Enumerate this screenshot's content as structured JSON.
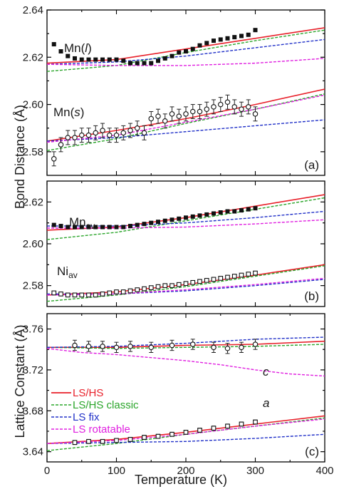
{
  "chart_data": [
    {
      "type": "line",
      "panel_label": "(a)",
      "xlim": [
        0,
        400
      ],
      "ylim": [
        2.57,
        2.64
      ],
      "yticks": [
        "2.58",
        "2.60",
        "2.62",
        "2.64"
      ],
      "annotations": [
        {
          "id": "mn-l",
          "main": "Mn(",
          "italic": "l",
          "tail": ")"
        },
        {
          "id": "mn-s",
          "main": "Mn(",
          "italic": "s",
          "tail": ")"
        }
      ],
      "series": [
        {
          "name": "LS/HS",
          "color": "#e8202a",
          "style": "solid",
          "x": [
            0,
            100,
            200,
            300,
            400
          ],
          "y": [
            2.6175,
            2.619,
            2.6235,
            2.628,
            2.6325
          ]
        },
        {
          "name": "LS/HS classic",
          "color": "#2aa52a",
          "style": "dashed",
          "x": [
            0,
            100,
            200,
            300,
            400
          ],
          "y": [
            2.614,
            2.6165,
            2.622,
            2.627,
            2.6315
          ]
        },
        {
          "name": "LS fix",
          "color": "#2030c8",
          "style": "dashed",
          "x": [
            0,
            100,
            200,
            300,
            400
          ],
          "y": [
            2.617,
            2.618,
            2.6205,
            2.624,
            2.6275
          ]
        },
        {
          "name": "LS rotatable",
          "color": "#e020e0",
          "style": "dashed",
          "x": [
            0,
            100,
            200,
            300,
            400
          ],
          "y": [
            2.617,
            2.6165,
            2.6165,
            2.6175,
            2.6195
          ]
        },
        {
          "name": "LS/HS",
          "color": "#e8202a",
          "style": "solid",
          "x": [
            0,
            100,
            200,
            300,
            400
          ],
          "y": [
            2.5845,
            2.589,
            2.594,
            2.6,
            2.6065
          ]
        },
        {
          "name": "LS/HS classic",
          "color": "#2aa52a",
          "style": "dashed",
          "x": [
            0,
            100,
            200,
            300,
            400
          ],
          "y": [
            2.5805,
            2.5855,
            2.592,
            2.598,
            2.6045
          ]
        },
        {
          "name": "LS fix",
          "color": "#2030c8",
          "style": "dashed",
          "x": [
            0,
            100,
            200,
            300,
            400
          ],
          "y": [
            2.5845,
            2.586,
            2.5885,
            2.591,
            2.5935
          ]
        },
        {
          "name": "LS rotatable",
          "color": "#e020e0",
          "style": "dashed",
          "x": [
            0,
            100,
            200,
            300,
            400
          ],
          "y": [
            2.584,
            2.587,
            2.5925,
            2.598,
            2.604
          ]
        }
      ],
      "points": [
        {
          "marker": "square-filled",
          "errorbars": false,
          "x": [
            10,
            20,
            30,
            40,
            50,
            60,
            70,
            80,
            90,
            100,
            110,
            120,
            130,
            140,
            150,
            160,
            170,
            180,
            190,
            200,
            210,
            220,
            230,
            240,
            250,
            260,
            270,
            280,
            290,
            300
          ],
          "y": [
            2.6255,
            2.6225,
            2.6205,
            2.6195,
            2.619,
            2.619,
            2.619,
            2.619,
            2.619,
            2.619,
            2.6185,
            2.6175,
            2.6175,
            2.6175,
            2.6175,
            2.6185,
            2.6195,
            2.6205,
            2.622,
            2.6225,
            2.6235,
            2.625,
            2.626,
            2.627,
            2.6275,
            2.628,
            2.6285,
            2.629,
            2.6295,
            2.6315
          ]
        },
        {
          "marker": "circle-open",
          "errorbars": true,
          "err": 0.003,
          "x": [
            10,
            20,
            30,
            40,
            50,
            60,
            70,
            80,
            90,
            100,
            110,
            120,
            130,
            140,
            150,
            160,
            170,
            180,
            190,
            200,
            210,
            220,
            230,
            240,
            250,
            260,
            270,
            280,
            290,
            300
          ],
          "y": [
            2.577,
            2.583,
            2.586,
            2.586,
            2.587,
            2.587,
            2.588,
            2.589,
            2.587,
            2.587,
            2.588,
            2.589,
            2.59,
            2.588,
            2.594,
            2.595,
            2.593,
            2.596,
            2.595,
            2.596,
            2.597,
            2.597,
            2.598,
            2.599,
            2.6,
            2.601,
            2.599,
            2.598,
            2.599,
            2.596
          ]
        }
      ]
    },
    {
      "type": "line",
      "panel_label": "(b)",
      "xlim": [
        0,
        400
      ],
      "ylim": [
        2.57,
        2.63
      ],
      "yticks": [
        "2.58",
        "2.60",
        "2.62"
      ],
      "annotations": [
        {
          "id": "mn-av",
          "main": "Mn",
          "sub": "av"
        },
        {
          "id": "ni-av",
          "main": "Ni",
          "sub": "av"
        }
      ],
      "series": [
        {
          "name": "LS/HS",
          "color": "#e8202a",
          "style": "solid",
          "x": [
            0,
            100,
            200,
            300,
            400
          ],
          "y": [
            2.6065,
            2.608,
            2.6125,
            2.618,
            2.6235
          ]
        },
        {
          "name": "LS/HS classic",
          "color": "#2aa52a",
          "style": "dashed",
          "x": [
            0,
            100,
            200,
            300,
            400
          ],
          "y": [
            2.602,
            2.6055,
            2.611,
            2.6165,
            2.622
          ]
        },
        {
          "name": "LS fix",
          "color": "#2030c8",
          "style": "dashed",
          "x": [
            0,
            100,
            200,
            300,
            400
          ],
          "y": [
            2.6085,
            2.6085,
            2.61,
            2.6125,
            2.6155
          ]
        },
        {
          "name": "LS rotatable",
          "color": "#e020e0",
          "style": "dashed",
          "x": [
            0,
            100,
            200,
            300,
            400
          ],
          "y": [
            2.6075,
            2.6075,
            2.608,
            2.6095,
            2.6115
          ]
        },
        {
          "name": "LS/HS",
          "color": "#e8202a",
          "style": "solid",
          "x": [
            0,
            100,
            200,
            300,
            400
          ],
          "y": [
            2.5755,
            2.577,
            2.5805,
            2.585,
            2.59
          ]
        },
        {
          "name": "LS/HS classic",
          "color": "#2aa52a",
          "style": "dashed",
          "x": [
            0,
            100,
            200,
            300,
            400
          ],
          "y": [
            2.5725,
            2.5755,
            2.5795,
            2.5845,
            2.5895
          ]
        },
        {
          "name": "LS fix",
          "color": "#2030c8",
          "style": "dashed",
          "x": [
            0,
            100,
            200,
            300,
            400
          ],
          "y": [
            2.576,
            2.576,
            2.5775,
            2.58,
            2.583
          ]
        },
        {
          "name": "LS rotatable",
          "color": "#e020e0",
          "style": "dashed",
          "x": [
            0,
            100,
            200,
            300,
            400
          ],
          "y": [
            2.5755,
            2.576,
            2.578,
            2.5805,
            2.5835
          ]
        }
      ],
      "points": [
        {
          "marker": "square-filled",
          "errorbars": false,
          "x": [
            10,
            20,
            30,
            40,
            50,
            60,
            70,
            80,
            90,
            100,
            110,
            120,
            130,
            140,
            150,
            160,
            170,
            180,
            190,
            200,
            210,
            220,
            230,
            240,
            250,
            260,
            270,
            280,
            290,
            300
          ],
          "y": [
            2.609,
            2.6085,
            2.608,
            2.608,
            2.608,
            2.608,
            2.608,
            2.608,
            2.608,
            2.608,
            2.608,
            2.6085,
            2.609,
            2.6095,
            2.61,
            2.6105,
            2.611,
            2.6115,
            2.612,
            2.6125,
            2.613,
            2.6135,
            2.614,
            2.6145,
            2.615,
            2.6155,
            2.6155,
            2.616,
            2.6165,
            2.617
          ]
        },
        {
          "marker": "square-open",
          "errorbars": false,
          "x": [
            10,
            20,
            30,
            40,
            50,
            60,
            70,
            80,
            90,
            100,
            110,
            120,
            130,
            140,
            150,
            160,
            170,
            180,
            190,
            200,
            210,
            220,
            230,
            240,
            250,
            260,
            270,
            280,
            290,
            300
          ],
          "y": [
            2.5765,
            2.576,
            2.5755,
            2.5755,
            2.5755,
            2.5755,
            2.5755,
            2.576,
            2.5765,
            2.577,
            2.577,
            2.5775,
            2.578,
            2.5785,
            2.579,
            2.5795,
            2.58,
            2.58,
            2.5805,
            2.581,
            2.5815,
            2.582,
            2.5825,
            2.583,
            2.5835,
            2.584,
            2.5845,
            2.585,
            2.5855,
            2.586
          ]
        }
      ]
    },
    {
      "type": "line",
      "panel_label": "(c)",
      "xlim": [
        0,
        400
      ],
      "ylim": [
        3.63,
        3.775
      ],
      "yticks": [
        "3.64",
        "3.68",
        "3.72",
        "3.76"
      ],
      "xticks": [
        "0",
        "100",
        "200",
        "300",
        "400"
      ],
      "xlabel": "Temperature  (K)",
      "annotations": [
        {
          "id": "c-label",
          "italic": "c"
        },
        {
          "id": "a-label",
          "italic": "a"
        }
      ],
      "legend": {
        "placement": "left",
        "entries": [
          {
            "label": "LS/HS",
            "color": "#e8202a",
            "style": "solid"
          },
          {
            "label": "LS/HS classic",
            "color": "#2aa52a",
            "style": "dashed"
          },
          {
            "label": "LS fix",
            "color": "#2030c8",
            "style": "dashed"
          },
          {
            "label": "LS rotatable",
            "color": "#e020e0",
            "style": "dashed"
          }
        ]
      },
      "series": [
        {
          "name": "LS/HS",
          "color": "#e8202a",
          "style": "solid",
          "x": [
            0,
            100,
            200,
            300,
            400
          ],
          "y": [
            3.742,
            3.742,
            3.744,
            3.745,
            3.748
          ]
        },
        {
          "name": "LS/HS classic",
          "color": "#2aa52a",
          "style": "dashed",
          "x": [
            0,
            100,
            200,
            300,
            400
          ],
          "y": [
            3.742,
            3.741,
            3.742,
            3.743,
            3.745
          ]
        },
        {
          "name": "LS fix",
          "color": "#2030c8",
          "style": "dashed",
          "x": [
            0,
            100,
            200,
            300,
            400
          ],
          "y": [
            3.742,
            3.743,
            3.746,
            3.75,
            3.752
          ]
        },
        {
          "name": "LS rotatable",
          "color": "#e020e0",
          "style": "dashed",
          "x": [
            0,
            50,
            100,
            150,
            200,
            250,
            300,
            350,
            400
          ],
          "y": [
            3.741,
            3.737,
            3.735,
            3.732,
            3.729,
            3.725,
            3.72,
            3.716,
            3.714
          ]
        },
        {
          "name": "LS/HS",
          "color": "#e8202a",
          "style": "solid",
          "x": [
            0,
            100,
            200,
            300,
            400
          ],
          "y": [
            3.648,
            3.652,
            3.659,
            3.667,
            3.675
          ]
        },
        {
          "name": "LS/HS classic",
          "color": "#2aa52a",
          "style": "dashed",
          "x": [
            0,
            100,
            200,
            300,
            400
          ],
          "y": [
            3.641,
            3.648,
            3.657,
            3.665,
            3.673
          ]
        },
        {
          "name": "LS fix",
          "color": "#2030c8",
          "style": "dashed",
          "x": [
            0,
            100,
            200,
            300,
            400
          ],
          "y": [
            3.648,
            3.649,
            3.65,
            3.653,
            3.657
          ]
        },
        {
          "name": "LS rotatable",
          "color": "#e020e0",
          "style": "dashed",
          "x": [
            0,
            100,
            200,
            300,
            400
          ],
          "y": [
            3.648,
            3.651,
            3.657,
            3.665,
            3.672
          ]
        }
      ],
      "points": [
        {
          "marker": "circle-open",
          "errorbars": true,
          "err": 0.005,
          "x": [
            40,
            60,
            80,
            100,
            120,
            150,
            180,
            210,
            240,
            260,
            280,
            300
          ],
          "y": [
            3.744,
            3.743,
            3.743,
            3.742,
            3.743,
            3.742,
            3.744,
            3.745,
            3.742,
            3.741,
            3.742,
            3.745
          ]
        },
        {
          "marker": "square-open",
          "errorbars": true,
          "err": 0.002,
          "x": [
            40,
            60,
            80,
            100,
            120,
            140,
            160,
            180,
            200,
            220,
            240,
            260,
            280,
            300
          ],
          "y": [
            3.649,
            3.65,
            3.65,
            3.651,
            3.652,
            3.654,
            3.655,
            3.657,
            3.659,
            3.661,
            3.663,
            3.665,
            3.667,
            3.669
          ]
        }
      ]
    }
  ],
  "shared_ylabels": {
    "top": "Bond Distance  (Å)",
    "bottom": "Lattice Constant  (Å)"
  }
}
